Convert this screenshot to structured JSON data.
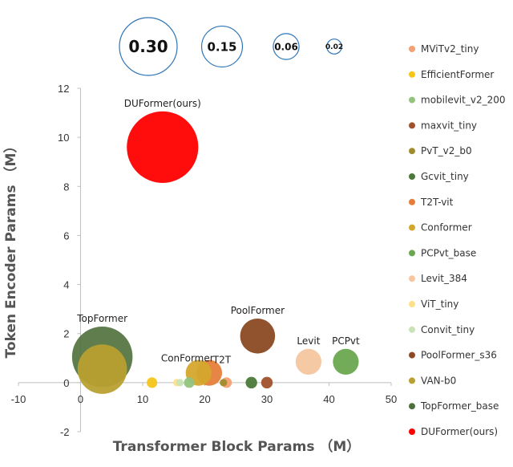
{
  "chart_data": {
    "type": "scatter",
    "title": "",
    "xlabel": "Transformer Block Params （M）",
    "ylabel": "Token Encoder Params （M）",
    "xlim": [
      -10,
      50
    ],
    "ylim": [
      -2,
      12
    ],
    "x_ticks": [
      -10,
      0,
      10,
      20,
      30,
      40,
      50
    ],
    "y_ticks": [
      -2,
      0,
      2,
      4,
      6,
      8,
      10,
      12
    ],
    "x_tick_labels": [
      "-10",
      "0",
      "10",
      "20",
      "30",
      "40",
      "50"
    ],
    "y_tick_labels": [
      "-2",
      "0",
      "2",
      "4",
      "6",
      "8",
      "10",
      "12"
    ],
    "grid": false,
    "legend_position": "right",
    "size_legend": [
      "0.30",
      "0.15",
      "0.06",
      "0.02"
    ],
    "size_legend_values": [
      0.3,
      0.15,
      0.06,
      0.02
    ],
    "series": [
      {
        "name": "MViTv2_tiny",
        "color": "#f4a072",
        "x": 23.5,
        "y": 0.0,
        "size": 0.01,
        "label": ""
      },
      {
        "name": "EfficientFormer",
        "color": "#f5c518",
        "x": 11.5,
        "y": 0.0,
        "size": 0.01,
        "label": ""
      },
      {
        "name": "mobilevit_v2_200",
        "color": "#92c47d",
        "x": 17.5,
        "y": 0.0,
        "size": 0.01,
        "label": ""
      },
      {
        "name": "maxvit_tiny",
        "color": "#a0522d",
        "x": 30.0,
        "y": 0.0,
        "size": 0.012,
        "label": ""
      },
      {
        "name": "PvT_v2_b0",
        "color": "#a08c2c",
        "x": 23.0,
        "y": 0.0,
        "size": 0.005,
        "label": ""
      },
      {
        "name": "Gcvit_tiny",
        "color": "#4a7a3a",
        "x": 27.5,
        "y": 0.0,
        "size": 0.012,
        "label": ""
      },
      {
        "name": "T2T-vit",
        "color": "#e67e3a",
        "x": 20.7,
        "y": 0.4,
        "size": 0.06,
        "label": "T2T"
      },
      {
        "name": "Conformer",
        "color": "#d4a72c",
        "x": 19.0,
        "y": 0.4,
        "size": 0.06,
        "label": "ConFormer"
      },
      {
        "name": "PCPvt_base",
        "color": "#6aa84f",
        "x": 42.7,
        "y": 0.85,
        "size": 0.06,
        "label": "PCPvt"
      },
      {
        "name": "Levit_384",
        "color": "#f6c6a0",
        "x": 36.7,
        "y": 0.85,
        "size": 0.06,
        "label": "Levit"
      },
      {
        "name": "ViT_tiny",
        "color": "#ffe08a",
        "x": 15.5,
        "y": 0.0,
        "size": 0.005,
        "label": ""
      },
      {
        "name": "Convit_tiny",
        "color": "#c9e3b6",
        "x": 16.0,
        "y": 0.0,
        "size": 0.005,
        "label": ""
      },
      {
        "name": "PoolFormer_s36",
        "color": "#8b4a22",
        "x": 28.5,
        "y": 1.9,
        "size": 0.11,
        "label": "PoolFormer"
      },
      {
        "name": "VAN-b0",
        "color": "#b8a030",
        "x": 3.5,
        "y": 0.55,
        "size": 0.22,
        "label": ""
      },
      {
        "name": "TopFormer_base",
        "color": "#4f6f3a",
        "x": 3.5,
        "y": 1.05,
        "size": 0.33,
        "label": "TopFormer"
      },
      {
        "name": "DUFormer(ours)",
        "color": "#ff0000",
        "x": 13.2,
        "y": 9.6,
        "size": 0.46,
        "label": "DUFormer(ours)"
      }
    ]
  }
}
